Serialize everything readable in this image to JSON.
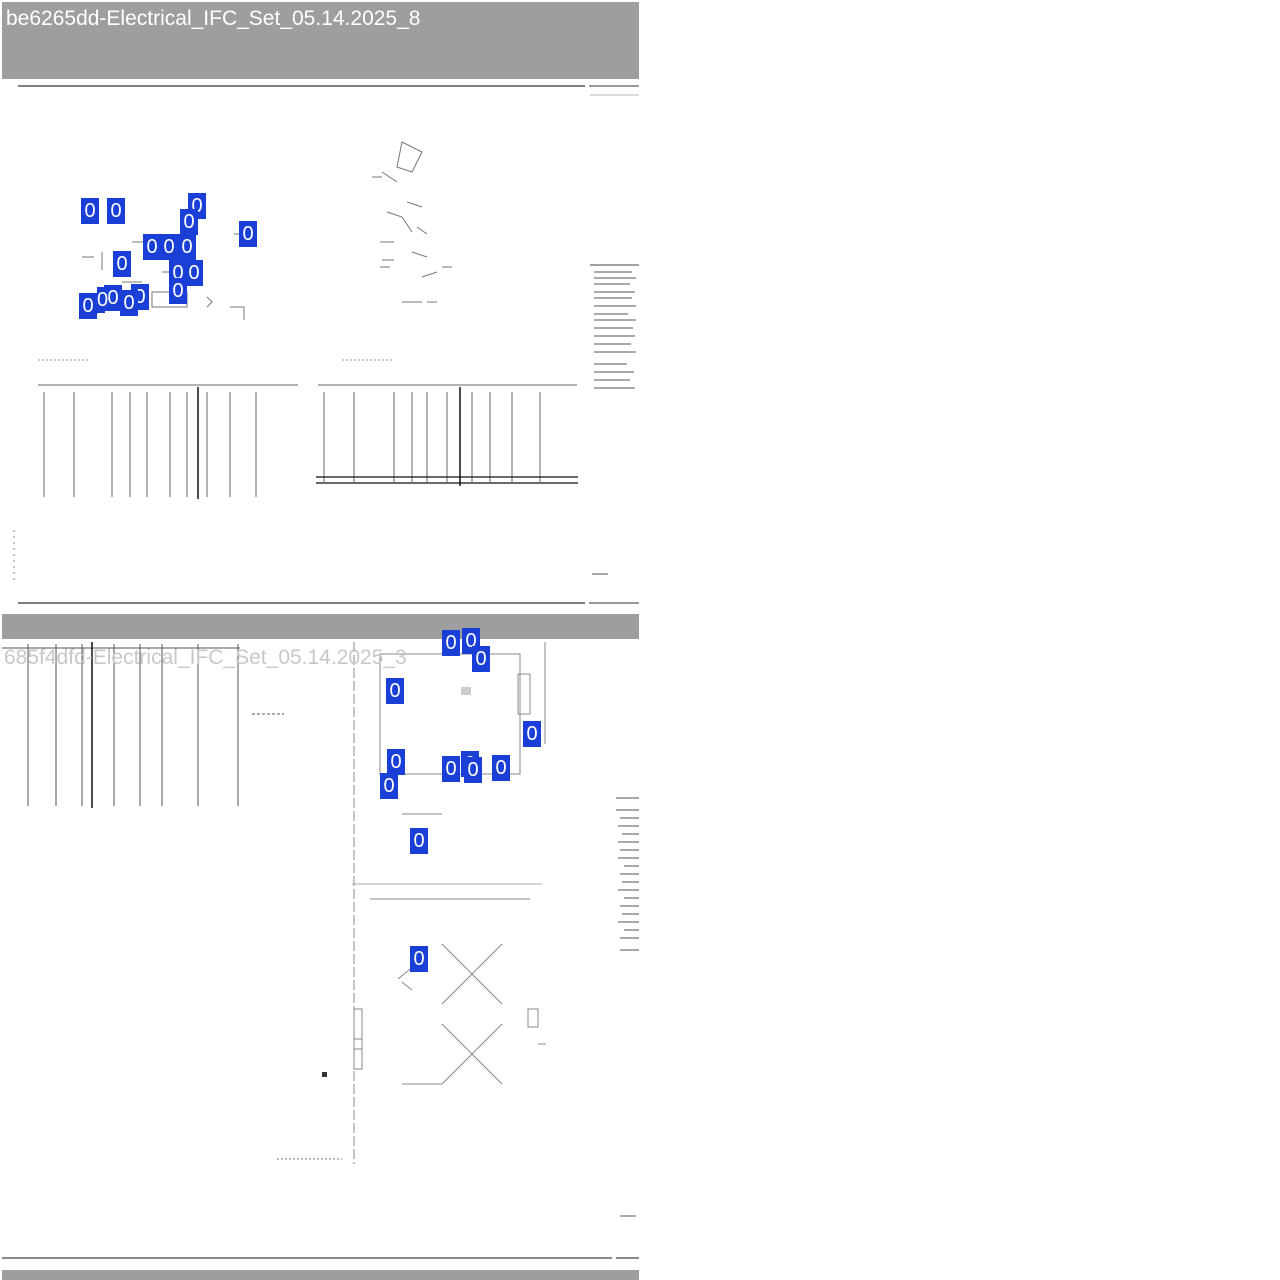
{
  "viewer": {
    "sheets": [
      {
        "title": "be6265dd-Electrical_IFC_Set_05.14.2025_8",
        "markers": [
          {
            "label": "0"
          },
          {
            "label": "0"
          },
          {
            "label": "0"
          },
          {
            "label": "0"
          },
          {
            "label": "0"
          },
          {
            "label": "0"
          },
          {
            "label": "0"
          },
          {
            "label": "0"
          },
          {
            "label": "0"
          },
          {
            "label": "0"
          },
          {
            "label": "0"
          },
          {
            "label": "0"
          },
          {
            "label": "0"
          },
          {
            "label": "0"
          },
          {
            "label": "0"
          },
          {
            "label": "0"
          },
          {
            "label": "0"
          }
        ]
      },
      {
        "title": "685f4dfd-Electrical_IFC_Set_05.14.2025_3",
        "markers": [
          {
            "label": "0"
          },
          {
            "label": "0"
          },
          {
            "label": "0"
          },
          {
            "label": "0"
          },
          {
            "label": "0"
          },
          {
            "label": "0"
          },
          {
            "label": "0"
          },
          {
            "label": "0"
          },
          {
            "label": "0"
          },
          {
            "label": "0"
          },
          {
            "label": "0"
          },
          {
            "label": "0"
          },
          {
            "label": "0"
          }
        ]
      }
    ]
  },
  "colors": {
    "header_bg": "#9e9e9e",
    "marker_bg": "#1a3fd6",
    "marker_text": "#ffffff"
  }
}
